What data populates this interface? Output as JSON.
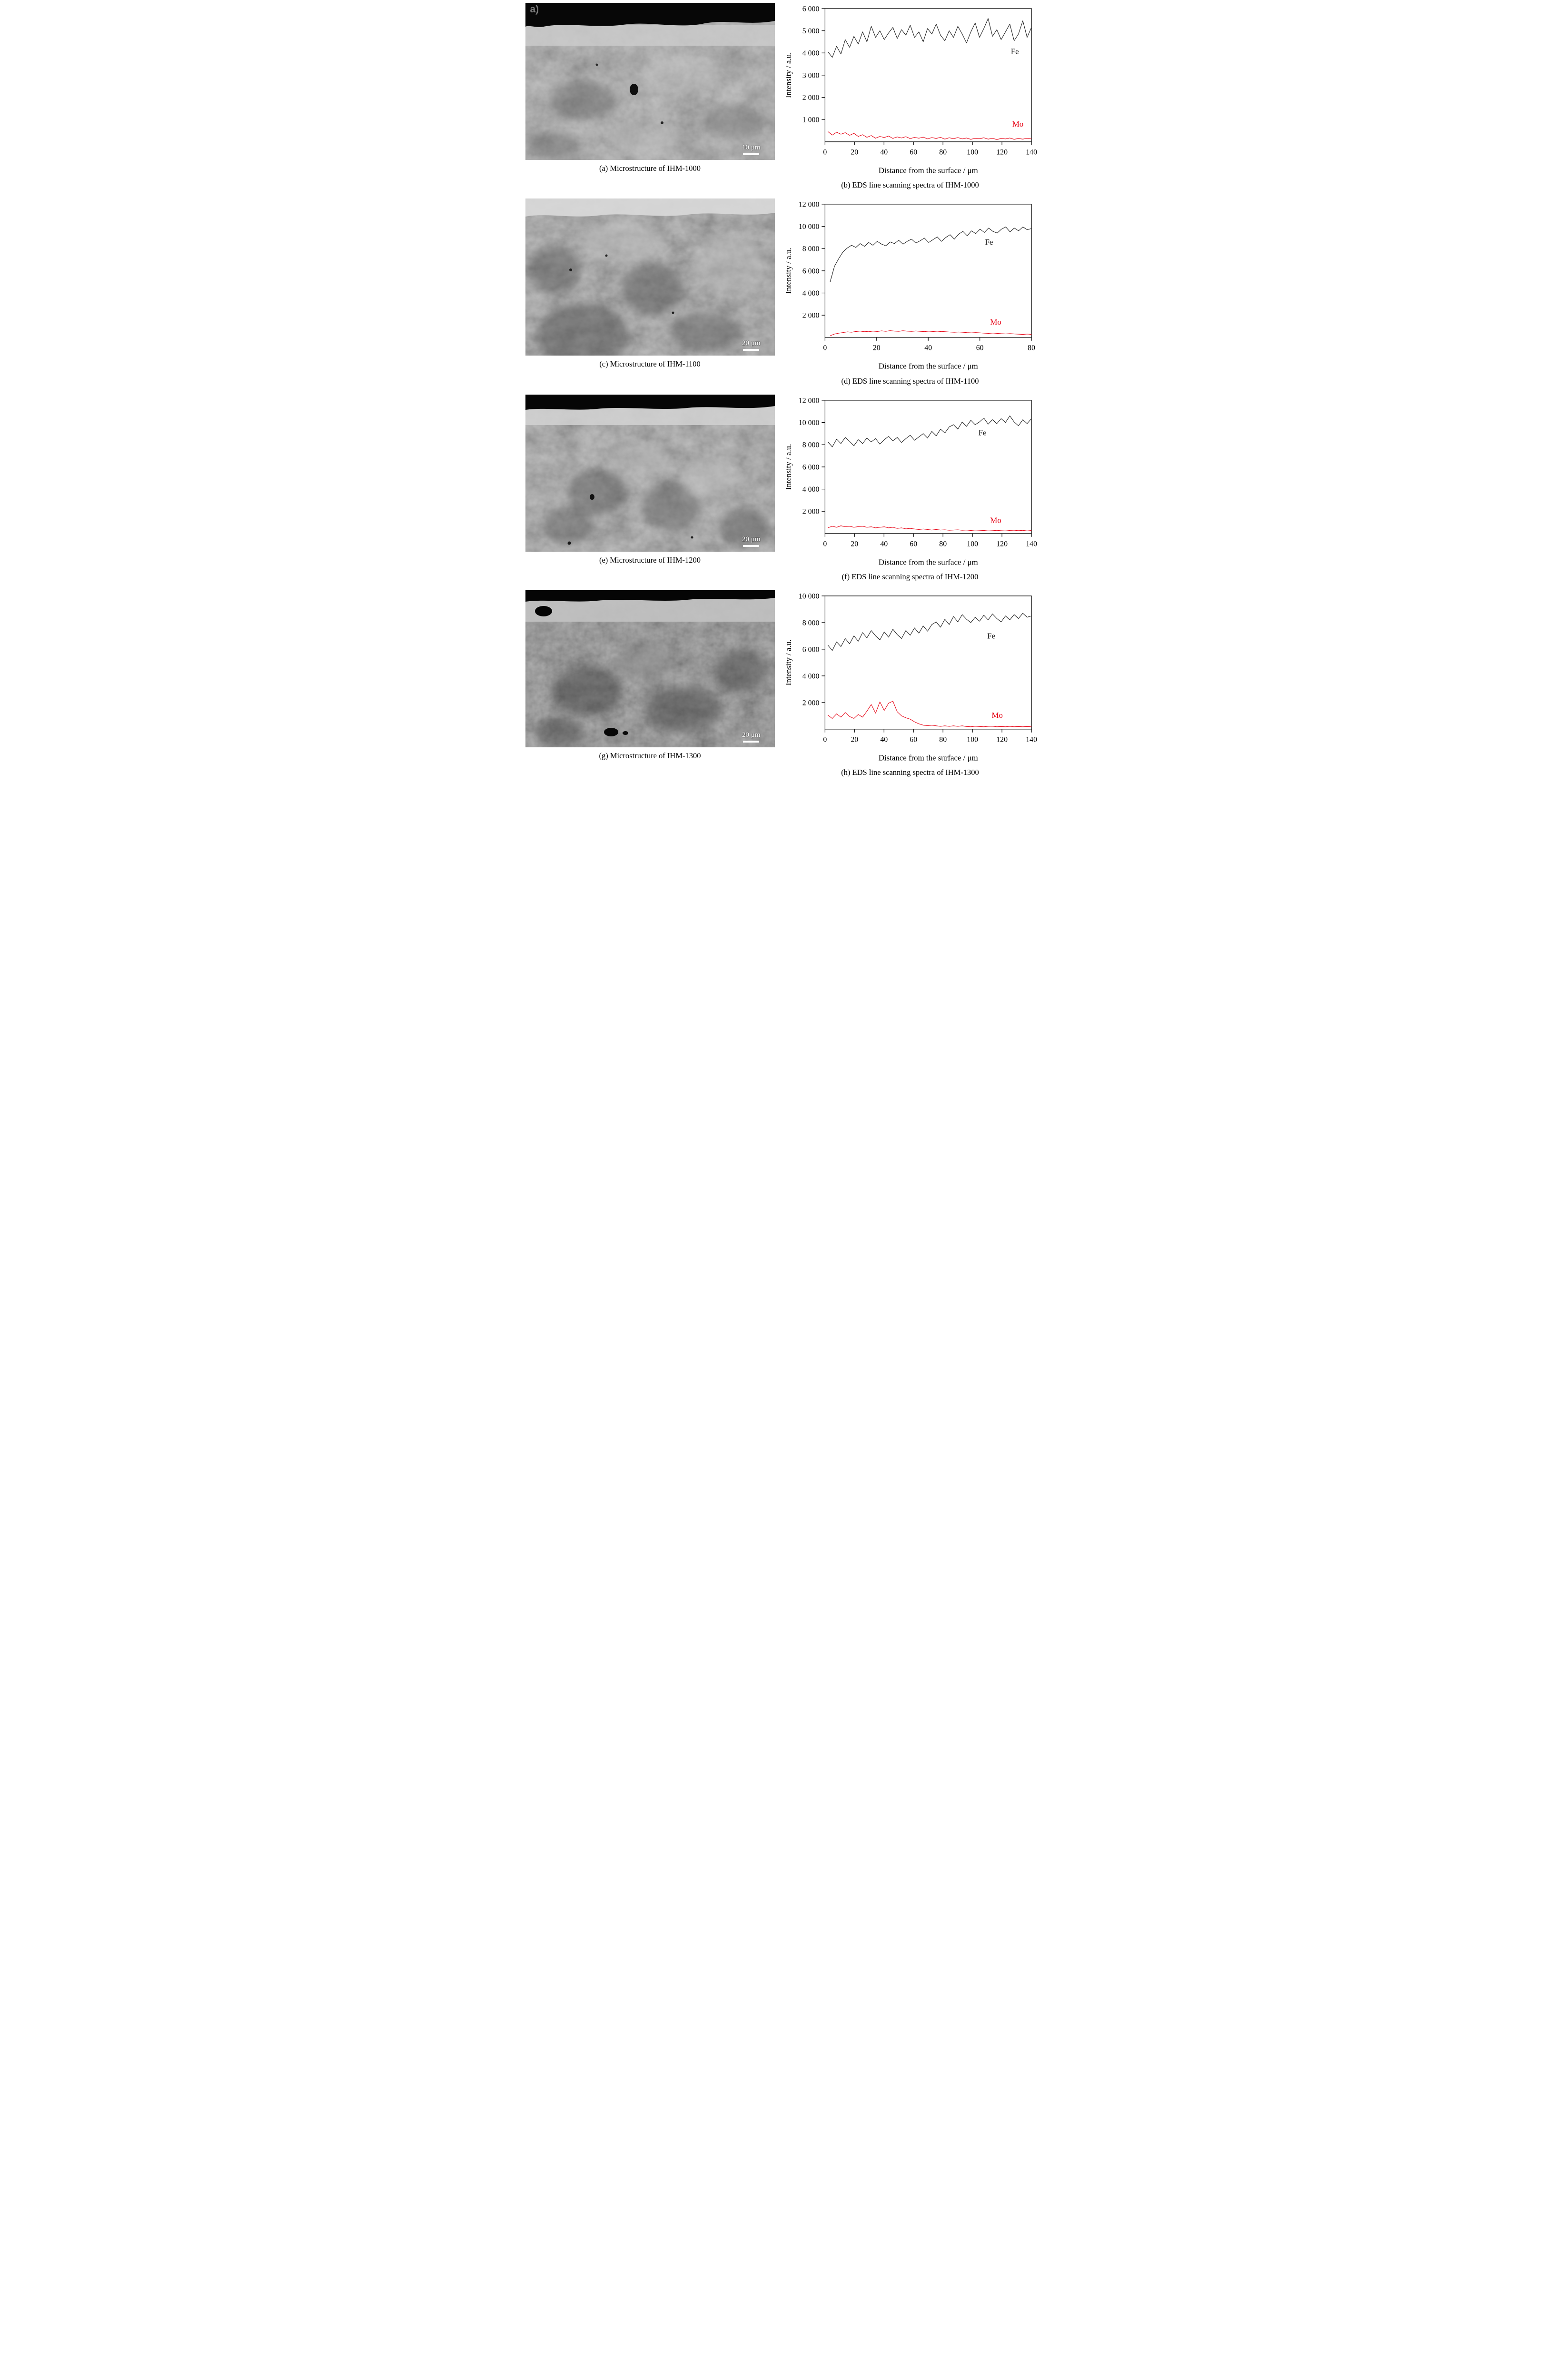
{
  "rows": [
    {
      "micro_caption": "(a) Microstructure of IHM-1000",
      "chart_caption": "(b) EDS line scanning spectra of IHM-1000",
      "scalebar": "10 μm",
      "corner_label": "a)"
    },
    {
      "micro_caption": "(c) Microstructure of IHM-1100",
      "chart_caption": "(d) EDS line scanning spectra of IHM-1100",
      "scalebar": "20 μm"
    },
    {
      "micro_caption": "(e) Microstructure of IHM-1200",
      "chart_caption": "(f) EDS line scanning spectra of IHM-1200",
      "scalebar": "20 μm"
    },
    {
      "micro_caption": "(g) Microstructure of IHM-1300",
      "chart_caption": "(h) EDS line scanning spectra of IHM-1300",
      "scalebar": "20 μm"
    }
  ],
  "chart_data": [
    {
      "type": "line",
      "title": "EDS line scanning spectra of IHM-1000",
      "xlabel": "Distance from the surface / μm",
      "ylabel": "Intensity / a.u.",
      "xlim": [
        0,
        140
      ],
      "ylim": [
        0,
        6000
      ],
      "x_start": 2,
      "grid": false,
      "xticks": [
        {
          "v": 0,
          "label": "0"
        },
        {
          "v": 20,
          "label": "20"
        },
        {
          "v": 40,
          "label": "40"
        },
        {
          "v": 60,
          "label": "60"
        },
        {
          "v": 80,
          "label": "80"
        },
        {
          "v": 100,
          "label": "100"
        },
        {
          "v": 120,
          "label": "120"
        },
        {
          "v": 140,
          "label": "140"
        }
      ],
      "yticks": [
        {
          "v": 1000,
          "label": "1 000"
        },
        {
          "v": 2000,
          "label": "2 000"
        },
        {
          "v": 3000,
          "label": "3 000"
        },
        {
          "v": 4000,
          "label": "4 000"
        },
        {
          "v": 5000,
          "label": "5 000"
        },
        {
          "v": 6000,
          "label": "6 000"
        }
      ],
      "series": [
        {
          "name": "Fe",
          "color": "#1a1a1a",
          "label_pos": [
            126,
            3950
          ],
          "values": [
            4050,
            3800,
            4300,
            3950,
            4600,
            4250,
            4750,
            4400,
            4950,
            4500,
            5200,
            4700,
            5000,
            4600,
            4900,
            5150,
            4650,
            5050,
            4800,
            5250,
            4700,
            4950,
            4500,
            5100,
            4850,
            5300,
            4800,
            4550,
            5000,
            4700,
            5200,
            4850,
            4450,
            4950,
            5350,
            4700,
            5100,
            5550,
            4750,
            5050,
            4600,
            4950,
            5300,
            4550,
            4850,
            5450,
            4700,
            5150
          ]
        },
        {
          "name": "Mo",
          "color": "#e60012",
          "label_pos": [
            127,
            680
          ],
          "values": [
            460,
            300,
            430,
            340,
            410,
            290,
            380,
            240,
            320,
            200,
            280,
            160,
            240,
            190,
            260,
            150,
            220,
            170,
            230,
            140,
            200,
            160,
            210,
            130,
            190,
            150,
            200,
            120,
            180,
            140,
            190,
            130,
            170,
            110,
            160,
            140,
            180,
            120,
            160,
            100,
            150,
            130,
            170,
            110,
            150,
            120,
            160,
            130
          ]
        }
      ]
    },
    {
      "type": "line",
      "title": "EDS line scanning spectra of IHM-1100",
      "xlabel": "Distance from the surface / μm",
      "ylabel": "Intensity / a.u.",
      "xlim": [
        0,
        80
      ],
      "ylim": [
        0,
        12000
      ],
      "x_start": 2,
      "grid": false,
      "xticks": [
        {
          "v": 0,
          "label": "0"
        },
        {
          "v": 20,
          "label": "20"
        },
        {
          "v": 40,
          "label": "40"
        },
        {
          "v": 60,
          "label": "60"
        },
        {
          "v": 80,
          "label": "80"
        }
      ],
      "yticks": [
        {
          "v": 2000,
          "label": "2 000"
        },
        {
          "v": 4000,
          "label": "4 000"
        },
        {
          "v": 6000,
          "label": "6 000"
        },
        {
          "v": 8000,
          "label": "8 000"
        },
        {
          "v": 10000,
          "label": "10 000"
        },
        {
          "v": 12000,
          "label": "12 000"
        }
      ],
      "series": [
        {
          "name": "Fe",
          "color": "#1a1a1a",
          "label_pos": [
            62,
            8350
          ],
          "values": [
            5000,
            6400,
            7100,
            7700,
            8050,
            8300,
            8100,
            8450,
            8200,
            8550,
            8300,
            8650,
            8400,
            8250,
            8600,
            8450,
            8750,
            8400,
            8650,
            8850,
            8500,
            8700,
            8950,
            8550,
            8800,
            9050,
            8650,
            9000,
            9250,
            8850,
            9300,
            9550,
            9150,
            9600,
            9350,
            9750,
            9450,
            9850,
            9550,
            9400,
            9750,
            9950,
            9500,
            9850,
            9600,
            9950,
            9700,
            9800
          ]
        },
        {
          "name": "Mo",
          "color": "#e60012",
          "label_pos": [
            64,
            1150
          ],
          "values": [
            150,
            300,
            380,
            440,
            500,
            470,
            530,
            490,
            550,
            510,
            570,
            530,
            590,
            550,
            610,
            570,
            550,
            600,
            560,
            540,
            580,
            550,
            520,
            560,
            530,
            500,
            540,
            510,
            480,
            460,
            490,
            460,
            430,
            410,
            440,
            410,
            380,
            360,
            390,
            360,
            330,
            310,
            340,
            310,
            290,
            270,
            300,
            270
          ]
        }
      ]
    },
    {
      "type": "line",
      "title": "EDS line scanning spectra of IHM-1200",
      "xlabel": "Distance from the surface / μm",
      "ylabel": "Intensity / a.u.",
      "xlim": [
        0,
        140
      ],
      "ylim": [
        0,
        12000
      ],
      "x_start": 2,
      "grid": false,
      "xticks": [
        {
          "v": 0,
          "label": "0"
        },
        {
          "v": 20,
          "label": "20"
        },
        {
          "v": 40,
          "label": "40"
        },
        {
          "v": 60,
          "label": "60"
        },
        {
          "v": 80,
          "label": "80"
        },
        {
          "v": 100,
          "label": "100"
        },
        {
          "v": 120,
          "label": "120"
        },
        {
          "v": 140,
          "label": "140"
        }
      ],
      "yticks": [
        {
          "v": 2000,
          "label": "2 000"
        },
        {
          "v": 4000,
          "label": "4 000"
        },
        {
          "v": 6000,
          "label": "6 000"
        },
        {
          "v": 8000,
          "label": "8 000"
        },
        {
          "v": 10000,
          "label": "10 000"
        },
        {
          "v": 12000,
          "label": "12 000"
        }
      ],
      "series": [
        {
          "name": "Fe",
          "color": "#1a1a1a",
          "label_pos": [
            104,
            8850
          ],
          "values": [
            8250,
            7800,
            8500,
            8100,
            8650,
            8300,
            7900,
            8450,
            8100,
            8600,
            8250,
            8550,
            8050,
            8450,
            8750,
            8350,
            8650,
            8200,
            8550,
            8850,
            8400,
            8700,
            9000,
            8600,
            9200,
            8800,
            9400,
            9050,
            9600,
            9800,
            9400,
            10050,
            9650,
            10200,
            9800,
            10050,
            10400,
            9850,
            10250,
            9900,
            10350,
            10000,
            10600,
            10050,
            9700,
            10250,
            9900,
            10350
          ]
        },
        {
          "name": "Mo",
          "color": "#e60012",
          "label_pos": [
            112,
            950
          ],
          "values": [
            520,
            660,
            560,
            700,
            610,
            660,
            560,
            620,
            660,
            560,
            610,
            510,
            560,
            610,
            510,
            560,
            460,
            510,
            420,
            460,
            410,
            360,
            410,
            360,
            310,
            360,
            310,
            330,
            290,
            310,
            330,
            290,
            310,
            270,
            310,
            290,
            270,
            310,
            290,
            260,
            290,
            310,
            270,
            250,
            290,
            260,
            310,
            270
          ]
        }
      ]
    },
    {
      "type": "line",
      "title": "EDS line scanning spectra of IHM-1300",
      "xlabel": "Distance from the surface / μm",
      "ylabel": "Intensity / a.u.",
      "xlim": [
        0,
        140
      ],
      "ylim": [
        0,
        10000
      ],
      "x_start": 2,
      "grid": false,
      "xticks": [
        {
          "v": 0,
          "label": "0"
        },
        {
          "v": 20,
          "label": "20"
        },
        {
          "v": 40,
          "label": "40"
        },
        {
          "v": 60,
          "label": "60"
        },
        {
          "v": 80,
          "label": "80"
        },
        {
          "v": 100,
          "label": "100"
        },
        {
          "v": 120,
          "label": "120"
        },
        {
          "v": 140,
          "label": "140"
        }
      ],
      "yticks": [
        {
          "v": 2000,
          "label": "2 000"
        },
        {
          "v": 4000,
          "label": "4 000"
        },
        {
          "v": 6000,
          "label": "6 000"
        },
        {
          "v": 8000,
          "label": "8 000"
        },
        {
          "v": 10000,
          "label": "10 000"
        }
      ],
      "series": [
        {
          "name": "Fe",
          "color": "#1a1a1a",
          "label_pos": [
            110,
            6800
          ],
          "values": [
            6300,
            5900,
            6550,
            6200,
            6800,
            6400,
            7000,
            6600,
            7250,
            6850,
            7400,
            7000,
            6700,
            7300,
            6900,
            7500,
            7100,
            6800,
            7400,
            7050,
            7600,
            7200,
            7750,
            7350,
            7850,
            8050,
            7650,
            8250,
            7850,
            8450,
            8050,
            8600,
            8250,
            8000,
            8400,
            8100,
            8550,
            8200,
            8650,
            8300,
            8050,
            8500,
            8200,
            8600,
            8300,
            8700,
            8400,
            8500
          ]
        },
        {
          "name": "Mo",
          "color": "#e60012",
          "label_pos": [
            113,
            850
          ],
          "values": [
            1050,
            800,
            1150,
            900,
            1250,
            950,
            800,
            1100,
            900,
            1350,
            1850,
            1200,
            2050,
            1400,
            1950,
            2100,
            1300,
            1000,
            850,
            750,
            550,
            400,
            300,
            260,
            300,
            250,
            210,
            250,
            210,
            250,
            210,
            250,
            200,
            180,
            220,
            200,
            180,
            210,
            220,
            180,
            200,
            180,
            210,
            180,
            200,
            180,
            200,
            180
          ]
        }
      ]
    }
  ]
}
